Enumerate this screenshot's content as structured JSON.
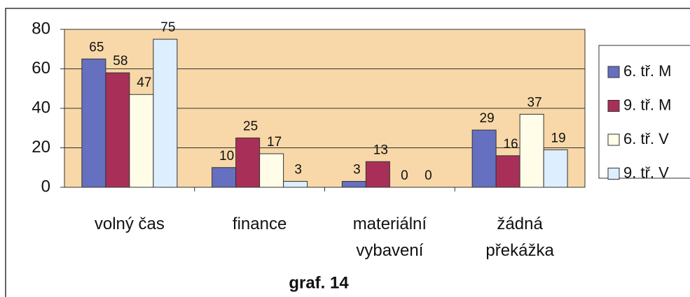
{
  "chart_data": {
    "type": "bar",
    "title": "graf. 14",
    "categories": [
      "volný čas",
      "finance",
      "materiální\nvybavení",
      "žádná\npřekážka"
    ],
    "series": [
      {
        "name": "6. tř. M",
        "color": "#6670c0",
        "values": [
          65,
          10,
          3,
          29
        ]
      },
      {
        "name": "9. tř. M",
        "color": "#a83058",
        "values": [
          58,
          25,
          13,
          16
        ]
      },
      {
        "name": "6. tř. V",
        "color": "#fffde8",
        "values": [
          47,
          17,
          0,
          37
        ]
      },
      {
        "name": "9. tř. V",
        "color": "#ddeeff",
        "values": [
          75,
          3,
          0,
          19
        ]
      }
    ],
    "ylim": [
      0,
      80
    ],
    "yticks": [
      0,
      20,
      40,
      60,
      80
    ],
    "grid": true,
    "legend": "right"
  }
}
